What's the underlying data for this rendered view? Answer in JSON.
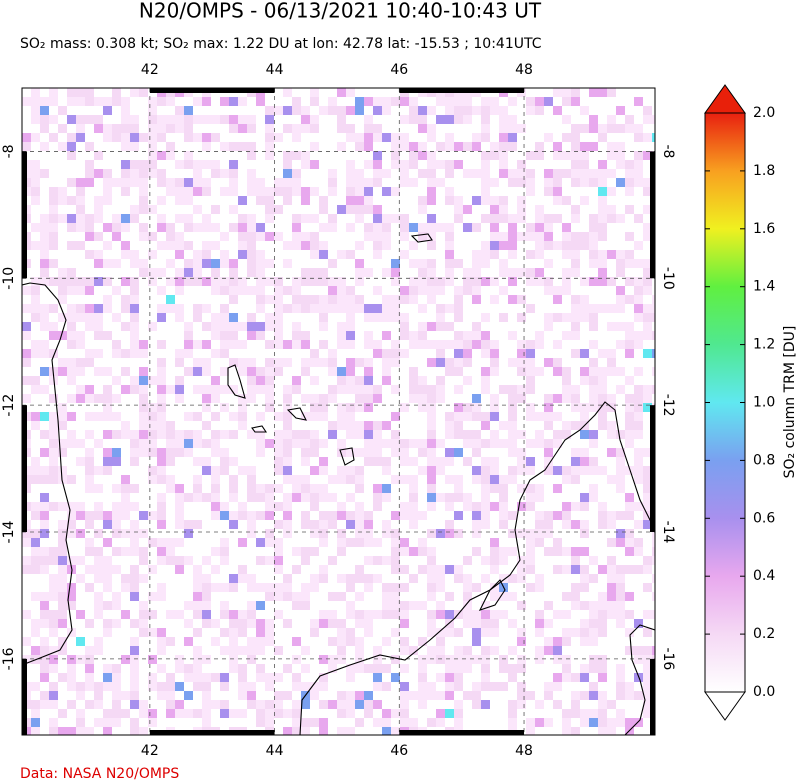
{
  "chart_data": {
    "type": "map",
    "title": "N20/OMPS - 06/13/2021 10:40-10:43 UT",
    "subtitle": "SO₂ mass: 0.308 kt; SO₂ max: 1.22 DU at lon: 42.78 lat: -15.53 ; 10:41UTC",
    "xlim": [
      39.95,
      50.1
    ],
    "ylim": [
      -17.2,
      -7
    ],
    "xticks": [
      42,
      44,
      46,
      48
    ],
    "yticks": [
      -8,
      -10,
      -12,
      -14,
      -16
    ],
    "grid": true,
    "colorbar_label": "SO₂ column TRM [DU]",
    "colorbar_lim": [
      0,
      2
    ],
    "colorbar_ticks": [
      {
        "value": 0,
        "label": "0.0"
      },
      {
        "value": 0.2,
        "label": "0.2"
      },
      {
        "value": 0.4,
        "label": "0.4"
      },
      {
        "value": 0.6,
        "label": "0.6"
      },
      {
        "value": 0.8,
        "label": "0.8"
      },
      {
        "value": 1,
        "label": "1.0"
      },
      {
        "value": 1.2,
        "label": "1.2"
      },
      {
        "value": 1.4,
        "label": "1.4"
      },
      {
        "value": 1.6,
        "label": "1.6"
      },
      {
        "value": 1.8,
        "label": "1.8"
      },
      {
        "value": 2,
        "label": "2.0"
      }
    ],
    "colorscale": [
      "#ffffff",
      "#f5d9f5",
      "#e8a8ee",
      "#a890ee",
      "#7aa0f0",
      "#60e8f0",
      "#50e890",
      "#60f040",
      "#f0f020",
      "#f8a020",
      "#e82010"
    ],
    "credit": "Data: NASA N20/OMPS"
  }
}
